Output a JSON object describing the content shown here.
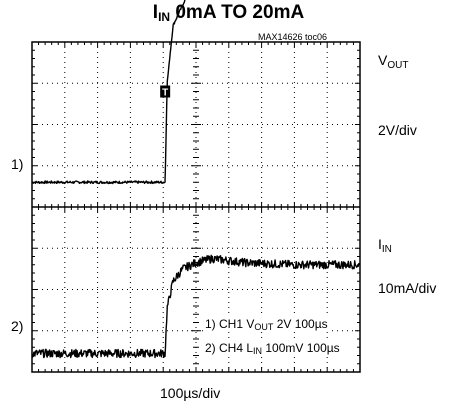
{
  "chart_data": {
    "type": "line",
    "title": "I",
    "title_sub": "IN",
    "title_rest": " 0mA TO 20mA",
    "figure_id": "MAX14626 toc06",
    "grid": {
      "x_divisions": 10,
      "y_divisions": 8,
      "style": "dotted"
    },
    "x_scale_label": "100µs/div",
    "trigger_marker": "T",
    "channels": [
      {
        "id": "1",
        "marker": "1)",
        "name_main": "V",
        "name_sub": "OUT",
        "scale_label": "2V/div",
        "ground_div": 4.6,
        "x_div": [
          0.0,
          4.06,
          4.12,
          4.3,
          4.7,
          5.2,
          6.0,
          7.0,
          8.0,
          10.0
        ],
        "y_div": [
          0.0,
          0.0,
          2.4,
          3.8,
          4.48,
          4.72,
          4.66,
          4.6,
          4.58,
          4.58
        ]
      },
      {
        "id": "4",
        "marker": "2)",
        "name_main": "I",
        "name_sub": "IN",
        "scale_label": "10mA/div",
        "ground_div": 0.45,
        "x_div": [
          0.0,
          4.06,
          4.12,
          4.3,
          4.6,
          5.0,
          5.5,
          6.5,
          8.0,
          10.0
        ],
        "y_div": [
          0.0,
          0.0,
          1.1,
          1.75,
          2.05,
          2.2,
          2.3,
          2.2,
          2.15,
          2.15
        ]
      }
    ],
    "annotations": [
      {
        "text_a": "1) CH1 V",
        "sub": "OUT",
        "text_b": " 2V 100µs"
      },
      {
        "text_a": "2) CH4 L",
        "sub": "IN",
        "text_b": " 100mV 100µs"
      }
    ]
  }
}
